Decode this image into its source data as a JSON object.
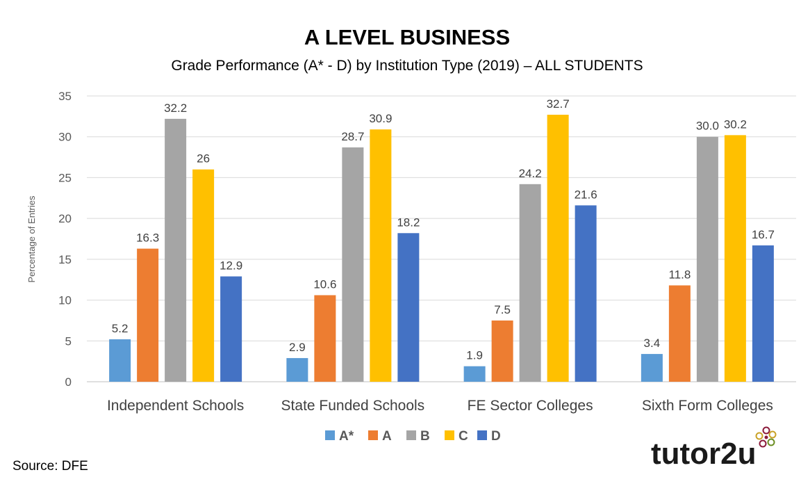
{
  "source": "Source: DFE",
  "logo": {
    "text": "tutor2u",
    "icon": "flower-logo-icon"
  },
  "chart_data": {
    "type": "bar",
    "title": "A LEVEL BUSINESS",
    "subtitle": "Grade Performance (A* - D) by Institution Type (2019) – ALL STUDENTS",
    "ylabel": "Percentage of Entries",
    "xlabel": "",
    "ylim": [
      0,
      35
    ],
    "yticks": [
      0,
      5,
      10,
      15,
      20,
      25,
      30,
      35
    ],
    "grid": true,
    "legend_position": "bottom",
    "categories": [
      "Independent Schools",
      "State Funded Schools",
      "FE Sector Colleges",
      "Sixth Form Colleges"
    ],
    "series": [
      {
        "name": "A*",
        "color": "#5B9BD5",
        "values": [
          5.2,
          2.9,
          1.9,
          3.4
        ],
        "labels": [
          "5.2",
          "2.9",
          "1.9",
          "3.4"
        ]
      },
      {
        "name": "A",
        "color": "#ED7D31",
        "values": [
          16.3,
          10.6,
          7.5,
          11.8
        ],
        "labels": [
          "16.3",
          "10.6",
          "7.5",
          "11.8"
        ]
      },
      {
        "name": "B",
        "color": "#A5A5A5",
        "values": [
          32.2,
          28.7,
          24.2,
          30.0
        ],
        "labels": [
          "32.2",
          "28.7",
          "24.2",
          "30.0"
        ]
      },
      {
        "name": "C",
        "color": "#FFC000",
        "values": [
          26,
          30.9,
          32.7,
          30.2
        ],
        "labels": [
          "26",
          "30.9",
          "32.7",
          "30.2"
        ]
      },
      {
        "name": "D",
        "color": "#4472C4",
        "values": [
          12.9,
          18.2,
          21.6,
          16.7
        ],
        "labels": [
          "12.9",
          "18.2",
          "21.6",
          "16.7"
        ]
      }
    ]
  }
}
